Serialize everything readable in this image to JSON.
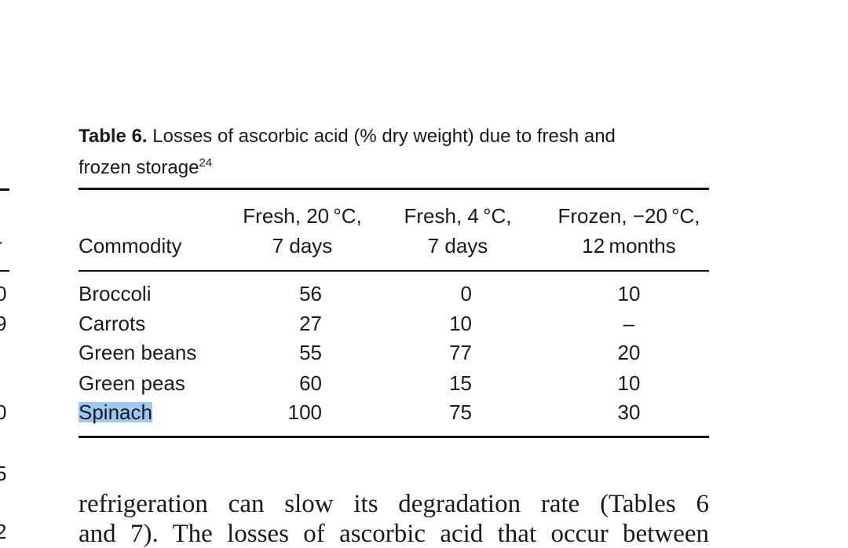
{
  "margin_fragments": [
    "r",
    "0",
    "9",
    "0",
    "5",
    "2"
  ],
  "table": {
    "caption": {
      "label": "Table 6.",
      "lines": [
        "Losses of ascorbic acid (% dry weight) due to fresh and",
        "frozen storage"
      ],
      "ref": "24"
    },
    "header": {
      "commodity": "Commodity",
      "columns": [
        [
          "Fresh, 20 °C,",
          "7 days"
        ],
        [
          "Fresh, 4 °C,",
          "7 days"
        ],
        [
          "Frozen, −20 °C,",
          "12 months"
        ]
      ]
    },
    "rows": [
      [
        "Broccoli",
        "56",
        "0",
        "10"
      ],
      [
        "Carrots",
        "27",
        "10",
        "–"
      ],
      [
        "Green beans",
        "55",
        "77",
        "20"
      ],
      [
        "Green peas",
        "60",
        "15",
        "10"
      ],
      [
        "Spinach",
        "100",
        "75",
        "30"
      ]
    ]
  },
  "body": {
    "lines": [
      "refrigeration can slow its degradation rate (Tables 6",
      "and 7). The losses of ascorbic acid that occur between"
    ]
  }
}
